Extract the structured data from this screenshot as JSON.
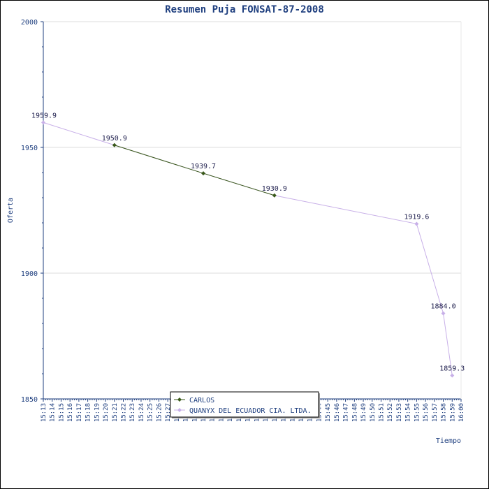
{
  "chart_data": {
    "type": "line",
    "title": "Resumen Puja FONSAT-87-2008",
    "xlabel": "Tiempo",
    "ylabel": "Oferta",
    "ylim": [
      1850,
      2000
    ],
    "yticks": [
      "1850",
      "1900",
      "1950",
      "2000"
    ],
    "grid": true,
    "legend_position": "bottom-center",
    "x_ticks": [
      "15:13",
      "15:14",
      "15:15",
      "15:16",
      "15:17",
      "15:18",
      "15:19",
      "15:20",
      "15:21",
      "15:22",
      "15:23",
      "15:24",
      "15:25",
      "15:26",
      "15:27",
      "15:28",
      "15:29",
      "15:30",
      "15:31",
      "15:32",
      "15:33",
      "15:34",
      "15:35",
      "15:36",
      "15:37",
      "15:38",
      "15:39",
      "15:40",
      "15:41",
      "15:42",
      "15:43",
      "15:44",
      "15:45",
      "15:46",
      "15:47",
      "15:48",
      "15:49",
      "15:50",
      "15:51",
      "15:52",
      "15:53",
      "15:54",
      "15:55",
      "15:56",
      "15:57",
      "15:58",
      "15:59",
      "16:00"
    ],
    "series": [
      {
        "name": "CARLOS",
        "color": "#3a5a1a",
        "marker": "diamond",
        "points": [
          {
            "x": "15:21",
            "y": 1950.9
          },
          {
            "x": "15:31",
            "y": 1939.7
          },
          {
            "x": "15:39",
            "y": 1930.9
          }
        ]
      },
      {
        "name": "QUANYX DEL ECUADOR CIA. LTDA.",
        "color": "#c8b0e8",
        "marker": "diamond",
        "points": [
          {
            "x": "15:13",
            "y": 1959.9
          },
          {
            "x": "15:21",
            "y": 1950.9
          },
          {
            "x": "15:31",
            "y": 1939.7
          },
          {
            "x": "15:39",
            "y": 1930.9
          },
          {
            "x": "15:55",
            "y": 1919.6
          },
          {
            "x": "15:58",
            "y": 1884.0
          },
          {
            "x": "15:59",
            "y": 1859.3
          }
        ]
      }
    ],
    "data_labels": [
      {
        "x": "15:13",
        "y": 1959.9,
        "text": "1959.9"
      },
      {
        "x": "15:21",
        "y": 1950.9,
        "text": "1950.9"
      },
      {
        "x": "15:31",
        "y": 1939.7,
        "text": "1939.7"
      },
      {
        "x": "15:39",
        "y": 1930.9,
        "text": "1930.9"
      },
      {
        "x": "15:55",
        "y": 1919.6,
        "text": "1919.6"
      },
      {
        "x": "15:58",
        "y": 1884.0,
        "text": "1884.0"
      },
      {
        "x": "15:59",
        "y": 1859.3,
        "text": "1859.3"
      }
    ]
  }
}
